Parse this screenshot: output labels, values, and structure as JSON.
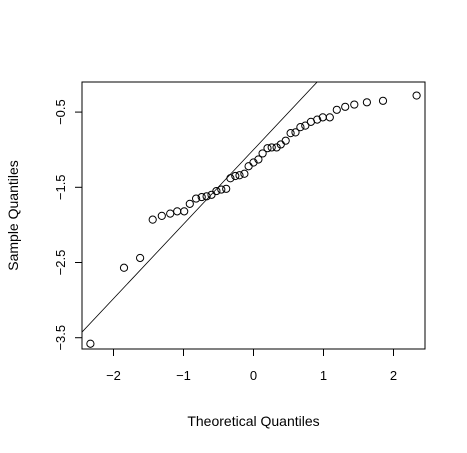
{
  "chart_data": {
    "type": "scatter",
    "title": "",
    "xlabel": "Theoretical Quantiles",
    "ylabel": "Sample Quantiles",
    "xlim": [
      -2.45,
      2.45
    ],
    "ylim": [
      -3.65,
      -0.1
    ],
    "x_ticks": [
      -2,
      -1,
      0,
      1,
      2
    ],
    "x_tick_labels": [
      "−2",
      "−1",
      "0",
      "1",
      "2"
    ],
    "y_ticks": [
      -3.5,
      -2.5,
      -1.5,
      -0.5
    ],
    "y_tick_labels": [
      "−3.5",
      "−2.5",
      "−1.5",
      "−0.5"
    ],
    "reference_line": {
      "slope": 0.99,
      "intercept": -1.0
    },
    "point_style": "open-circle",
    "grid": false,
    "legend": "none",
    "points": [
      {
        "x": -2.33,
        "y": -3.58
      },
      {
        "x": -1.85,
        "y": -2.57
      },
      {
        "x": -1.62,
        "y": -2.44
      },
      {
        "x": -1.44,
        "y": -1.93
      },
      {
        "x": -1.31,
        "y": -1.88
      },
      {
        "x": -1.19,
        "y": -1.85
      },
      {
        "x": -1.09,
        "y": -1.82
      },
      {
        "x": -0.99,
        "y": -1.82
      },
      {
        "x": -0.91,
        "y": -1.72
      },
      {
        "x": -0.82,
        "y": -1.65
      },
      {
        "x": -0.74,
        "y": -1.63
      },
      {
        "x": -0.67,
        "y": -1.62
      },
      {
        "x": -0.6,
        "y": -1.6
      },
      {
        "x": -0.53,
        "y": -1.55
      },
      {
        "x": -0.46,
        "y": -1.53
      },
      {
        "x": -0.39,
        "y": -1.52
      },
      {
        "x": -0.33,
        "y": -1.38
      },
      {
        "x": -0.26,
        "y": -1.35
      },
      {
        "x": -0.2,
        "y": -1.34
      },
      {
        "x": -0.13,
        "y": -1.32
      },
      {
        "x": -0.07,
        "y": -1.22
      },
      {
        "x": 0.0,
        "y": -1.17
      },
      {
        "x": 0.07,
        "y": -1.13
      },
      {
        "x": 0.13,
        "y": -1.05
      },
      {
        "x": 0.2,
        "y": -0.98
      },
      {
        "x": 0.26,
        "y": -0.97
      },
      {
        "x": 0.33,
        "y": -0.97
      },
      {
        "x": 0.39,
        "y": -0.93
      },
      {
        "x": 0.46,
        "y": -0.88
      },
      {
        "x": 0.53,
        "y": -0.78
      },
      {
        "x": 0.6,
        "y": -0.77
      },
      {
        "x": 0.67,
        "y": -0.7
      },
      {
        "x": 0.74,
        "y": -0.68
      },
      {
        "x": 0.82,
        "y": -0.63
      },
      {
        "x": 0.91,
        "y": -0.6
      },
      {
        "x": 0.99,
        "y": -0.57
      },
      {
        "x": 1.09,
        "y": -0.57
      },
      {
        "x": 1.19,
        "y": -0.47
      },
      {
        "x": 1.31,
        "y": -0.43
      },
      {
        "x": 1.44,
        "y": -0.4
      },
      {
        "x": 1.62,
        "y": -0.37
      },
      {
        "x": 1.85,
        "y": -0.35
      },
      {
        "x": 2.33,
        "y": -0.28
      }
    ]
  }
}
